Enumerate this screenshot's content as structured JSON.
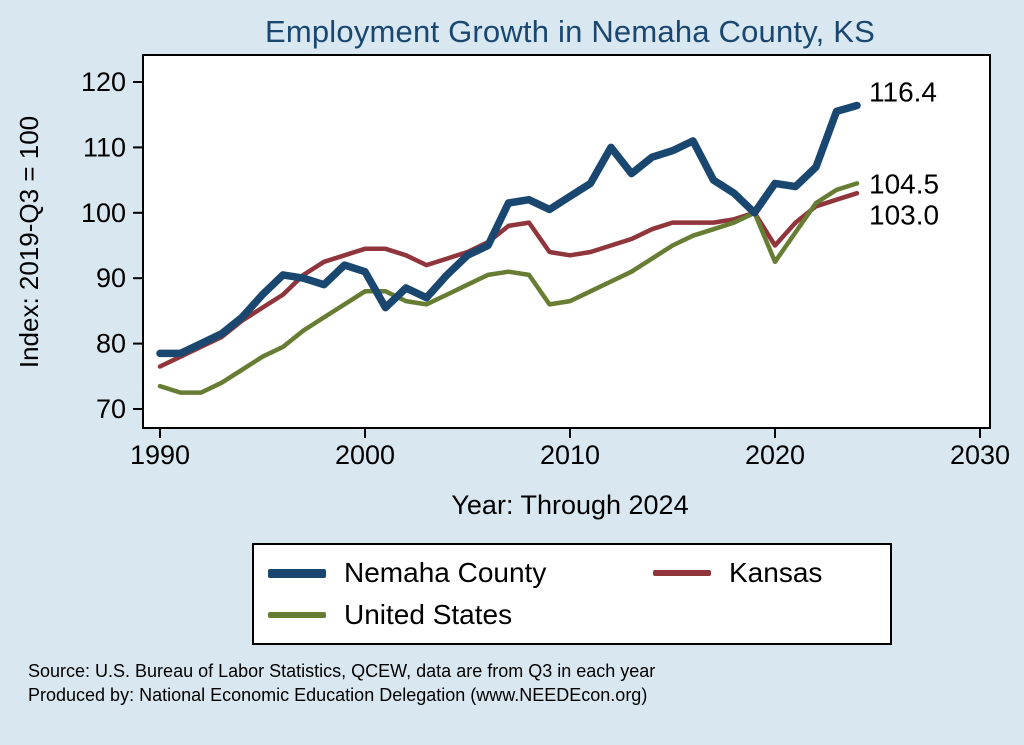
{
  "chart_data": {
    "type": "line",
    "title": "Employment Growth in Nemaha County, KS",
    "xlabel": "Year: Through 2024",
    "ylabel": "Index: 2019-Q3 = 100",
    "xlim": [
      1990,
      2030
    ],
    "ylim": [
      70,
      120
    ],
    "x_ticks": [
      1990,
      2000,
      2010,
      2020,
      2030
    ],
    "y_ticks": [
      70,
      80,
      90,
      100,
      110,
      120
    ],
    "grid": false,
    "legend_position": "bottom",
    "x": [
      1990,
      1991,
      1992,
      1993,
      1994,
      1995,
      1996,
      1997,
      1998,
      1999,
      2000,
      2001,
      2002,
      2003,
      2004,
      2005,
      2006,
      2007,
      2008,
      2009,
      2010,
      2011,
      2012,
      2013,
      2014,
      2015,
      2016,
      2017,
      2018,
      2019,
      2020,
      2021,
      2022,
      2023,
      2024
    ],
    "series": [
      {
        "name": "Nemaha County",
        "color": "#1a476f",
        "end_label": "116.4",
        "values": [
          78.5,
          78.5,
          80,
          81.5,
          84,
          87.5,
          90.5,
          90,
          89,
          92,
          91,
          85.5,
          88.5,
          87,
          90.5,
          93.5,
          95,
          101.5,
          102,
          100.5,
          102.5,
          104.5,
          110,
          106,
          108.5,
          109.5,
          111,
          105,
          103,
          100,
          104.5,
          104,
          107,
          115.5,
          116.4
        ]
      },
      {
        "name": "Kansas",
        "color": "#90353b",
        "end_label": "103.0",
        "values": [
          76.5,
          78,
          79.5,
          81,
          83.5,
          85.5,
          87.5,
          90.5,
          92.5,
          93.5,
          94.5,
          94.5,
          93.5,
          92,
          93,
          94,
          95.5,
          98,
          98.5,
          94,
          93.5,
          94,
          95,
          96,
          97.5,
          98.5,
          98.5,
          98.5,
          99,
          100,
          95,
          98.5,
          101,
          102,
          103
        ]
      },
      {
        "name": "United States",
        "color": "#667d33",
        "end_label": "104.5",
        "values": [
          73.5,
          72.5,
          72.5,
          74,
          76,
          78,
          79.5,
          82,
          84,
          86,
          88,
          88,
          86.5,
          86,
          87.5,
          89,
          90.5,
          91,
          90.5,
          86,
          86.5,
          88,
          89.5,
          91,
          93,
          95,
          96.5,
          97.5,
          98.5,
          100,
          92.5,
          97,
          101.5,
          103.5,
          104.5
        ]
      }
    ]
  },
  "footer": {
    "source": "Source: U.S. Bureau of Labor Statistics, QCEW, data are from Q3 in each year",
    "produced": "Produced by: National Economic Education Delegation (www.NEEDEcon.org)"
  },
  "colors": {
    "background": "#d9e7f1",
    "plot_background": "#ffffff",
    "title": "#1a476f",
    "axis_text": "#000000"
  }
}
